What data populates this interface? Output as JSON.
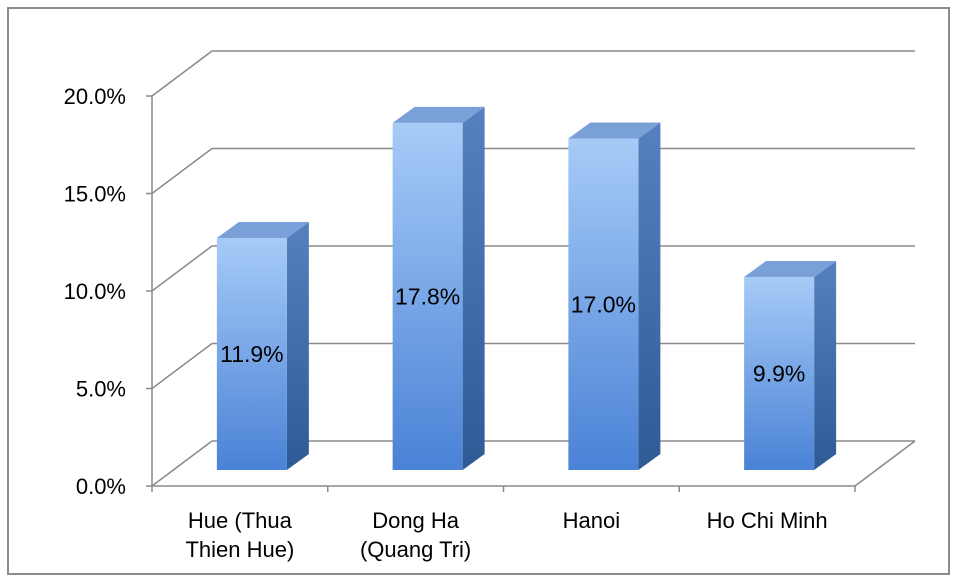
{
  "chart_data": {
    "type": "bar",
    "style": "3d-column",
    "categories": [
      [
        "Hue (Thua",
        "Thien Hue)"
      ],
      [
        "Dong Ha",
        "(Quang Tri)"
      ],
      [
        "Hanoi"
      ],
      [
        "Ho Chi Minh"
      ]
    ],
    "values": [
      11.9,
      17.8,
      17.0,
      9.9
    ],
    "data_labels": [
      "11.9%",
      "17.8%",
      "17.0%",
      "9.9%"
    ],
    "y_ticks": [
      "0.0%",
      "5.0%",
      "10.0%",
      "15.0%",
      "20.0%"
    ],
    "ylim": [
      0,
      20
    ],
    "grid": true,
    "legend": "none",
    "colors": {
      "bar_front_top": "#a6cbf7",
      "bar_front_bottom": "#4a82d6",
      "bar_side": "#2f5a96",
      "bar_top": "#7aa0d8",
      "grid": "#8a8a8a",
      "frame": "#8c8c8c"
    }
  }
}
